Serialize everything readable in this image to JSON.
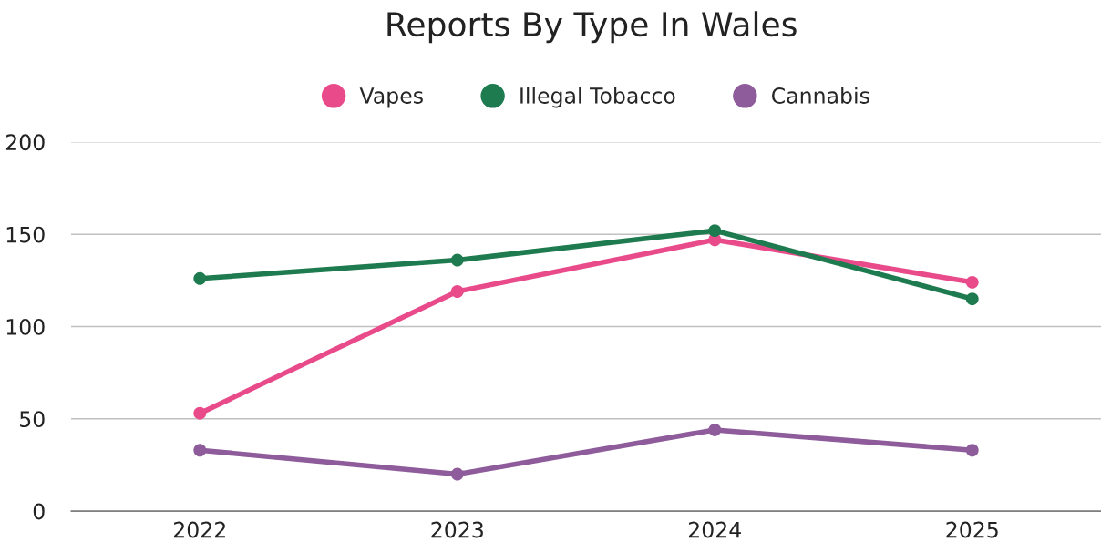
{
  "chart_data": {
    "type": "line",
    "title": "Reports By Type In Wales",
    "categories": [
      "2022",
      "2023",
      "2024",
      "2025"
    ],
    "series": [
      {
        "name": "Vapes",
        "color": "#e84a8a",
        "values": [
          53,
          119,
          147,
          124
        ]
      },
      {
        "name": "Illegal Tobacco",
        "color": "#1e7a4f",
        "values": [
          126,
          136,
          152,
          115
        ]
      },
      {
        "name": "Cannabis",
        "color": "#8e5b9b",
        "values": [
          33,
          20,
          44,
          33
        ]
      }
    ],
    "ylim": [
      0,
      200
    ],
    "yticks": [
      0,
      50,
      100,
      150,
      200
    ],
    "grid": "y",
    "legend": "top",
    "marker": "circle"
  }
}
